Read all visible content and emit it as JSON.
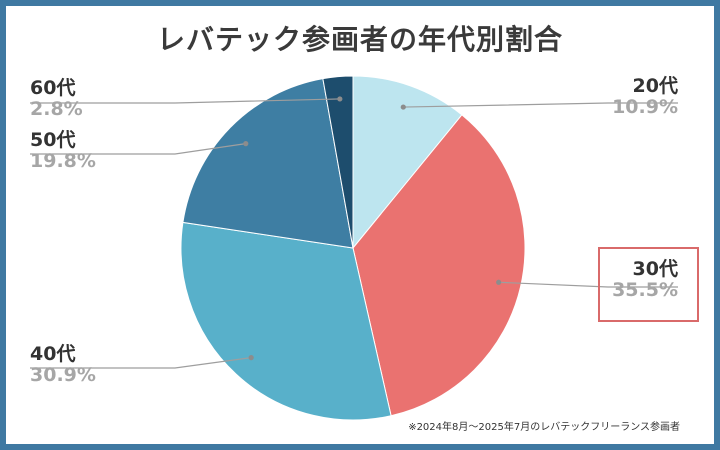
{
  "chart_data": {
    "type": "pie",
    "title": "レバテック参画者の年代別割合",
    "slices": [
      {
        "label": "20代",
        "value": 10.9,
        "display": "10.9%",
        "color": "#bde5ef",
        "side": "right"
      },
      {
        "label": "30代",
        "value": 35.5,
        "display": "35.5%",
        "color": "#ea7270",
        "side": "right",
        "highlighted": true
      },
      {
        "label": "40代",
        "value": 30.9,
        "display": "30.9%",
        "color": "#58b0ca",
        "side": "left"
      },
      {
        "label": "50代",
        "value": 19.8,
        "display": "19.8%",
        "color": "#3e7ea3",
        "side": "left"
      },
      {
        "label": "60代",
        "value": 2.8,
        "display": "2.8%",
        "color": "#1d4d6d",
        "side": "left"
      }
    ],
    "start": "12 o'clock",
    "direction": "clockwise",
    "footnote": "※2024年8月～2025年7月のレバテックフリーランス参画者"
  },
  "colors": {
    "frame": "#3f79a2",
    "leader_line": "#9e9e9e",
    "highlight_box": "#d96a6a"
  }
}
